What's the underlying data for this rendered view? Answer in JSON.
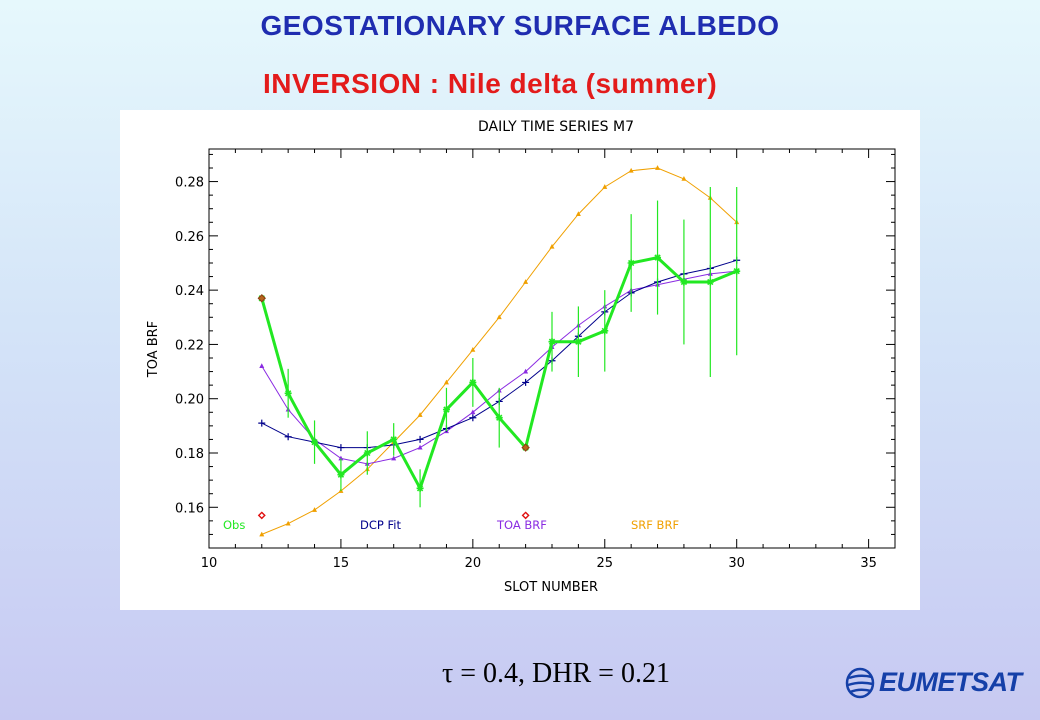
{
  "slide": {
    "title": "GEOSTATIONARY SURFACE ALBEDO",
    "subtitle": "INVERSION : Nile delta (summer)",
    "caption": "τ = 0.4, DHR = 0.21",
    "logo_text": "EUMETSAT",
    "logo_icon": "eumetsat-globe-icon"
  },
  "chart_data": {
    "type": "line",
    "title": "DAILY TIME SERIES M7",
    "xlabel": "SLOT NUMBER",
    "ylabel": "TOA BRF",
    "xlim": [
      10,
      36
    ],
    "ylim": [
      0.145,
      0.292
    ],
    "xticks": [
      10,
      15,
      20,
      25,
      30,
      35
    ],
    "yticks": [
      0.16,
      0.18,
      0.2,
      0.22,
      0.24,
      0.26,
      0.28
    ],
    "grid": false,
    "legend_position": "bottom",
    "series": [
      {
        "name": "SRF BRF",
        "color": "#f0a000",
        "marker": "triangle",
        "x": [
          12,
          13,
          14,
          15,
          16,
          17,
          18,
          19,
          20,
          21,
          22,
          23,
          24,
          25,
          26,
          27,
          28,
          29,
          30
        ],
        "y": [
          0.15,
          0.154,
          0.159,
          0.166,
          0.174,
          0.184,
          0.194,
          0.206,
          0.218,
          0.23,
          0.243,
          0.256,
          0.268,
          0.278,
          0.284,
          0.285,
          0.281,
          0.274,
          0.265
        ]
      },
      {
        "name": "TOA BRF",
        "color": "#8a2be2",
        "marker": "triangle",
        "x": [
          12,
          13,
          14,
          15,
          16,
          17,
          18,
          19,
          20,
          21,
          22,
          23,
          24,
          25,
          26,
          27,
          28,
          29,
          30
        ],
        "y": [
          0.212,
          0.196,
          0.185,
          0.178,
          0.176,
          0.178,
          0.182,
          0.188,
          0.195,
          0.203,
          0.21,
          0.219,
          0.227,
          0.234,
          0.24,
          0.242,
          0.244,
          0.246,
          0.247
        ]
      },
      {
        "name": "DCP Fit",
        "color": "#00008b",
        "marker": "plus",
        "x": [
          12,
          13,
          14,
          15,
          16,
          17,
          18,
          19,
          20,
          21,
          22,
          23,
          24,
          25,
          26,
          27,
          28,
          29,
          30
        ],
        "y": [
          0.191,
          0.186,
          0.184,
          0.182,
          0.182,
          0.183,
          0.185,
          0.189,
          0.193,
          0.199,
          0.206,
          0.214,
          0.223,
          0.232,
          0.239,
          0.243,
          0.246,
          0.248,
          0.251
        ]
      },
      {
        "name": "Obs",
        "color": "#22e822",
        "marker": "asterisk",
        "x": [
          12,
          13,
          14,
          15,
          16,
          17,
          18,
          19,
          20,
          21,
          22,
          23,
          24,
          25,
          26,
          27,
          28,
          29,
          30
        ],
        "y": [
          0.237,
          0.202,
          0.184,
          0.172,
          0.18,
          0.185,
          0.167,
          0.196,
          0.206,
          0.193,
          0.182,
          0.221,
          0.221,
          0.225,
          0.25,
          0.252,
          0.243,
          0.243,
          0.247
        ],
        "error": [
          0.0,
          0.009,
          0.008,
          0.006,
          0.008,
          0.006,
          0.007,
          0.008,
          0.009,
          0.011,
          0.0,
          0.011,
          0.013,
          0.015,
          0.018,
          0.021,
          0.023,
          0.035,
          0.031
        ]
      }
    ],
    "highlighted_points": [
      {
        "x": 12,
        "y": 0.237,
        "color": "#b5651d"
      },
      {
        "x": 22,
        "y": 0.182,
        "color": "#b5651d"
      }
    ],
    "outlier_markers": [
      {
        "x": 12,
        "y": 0.157,
        "color": "#e01010"
      },
      {
        "x": 22,
        "y": 0.157,
        "color": "#e01010"
      }
    ]
  }
}
